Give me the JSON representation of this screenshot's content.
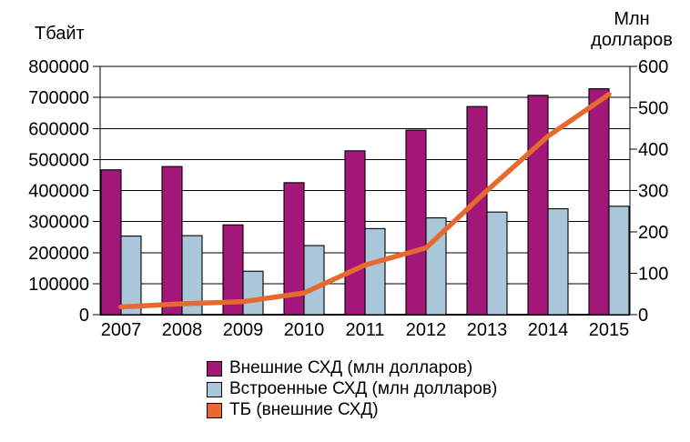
{
  "chart_data": {
    "type": "combo",
    "title": "",
    "categories": [
      "2007",
      "2008",
      "2009",
      "2010",
      "2011",
      "2012",
      "2013",
      "2014",
      "2015"
    ],
    "series": [
      {
        "name": "Внешние СХД (млн долларов)",
        "type": "bar",
        "axis": "right",
        "color": "#A21778",
        "values": [
          350,
          358,
          217,
          319,
          396,
          446,
          503,
          530,
          546
        ]
      },
      {
        "name": "Встроенные СХД (млн долларов)",
        "type": "bar",
        "axis": "right",
        "color": "#A9C7D9",
        "values": [
          190,
          191,
          105,
          167,
          208,
          234,
          248,
          256,
          262
        ]
      },
      {
        "name": "ТБ (внешние СХД)",
        "type": "line",
        "axis": "left",
        "color": "#E8692F",
        "values": [
          25000,
          35000,
          42000,
          70000,
          160000,
          215000,
          400000,
          575000,
          710000
        ]
      }
    ],
    "left_axis": {
      "title": "Тбайт",
      "min": 0,
      "max": 800000,
      "step": 100000
    },
    "right_axis": {
      "title_line1": "Млн",
      "title_line2": "долларов",
      "min": 0,
      "max": 600,
      "step": 100
    },
    "grid": true,
    "legend_position": "bottom",
    "outline_color": "#000000"
  }
}
